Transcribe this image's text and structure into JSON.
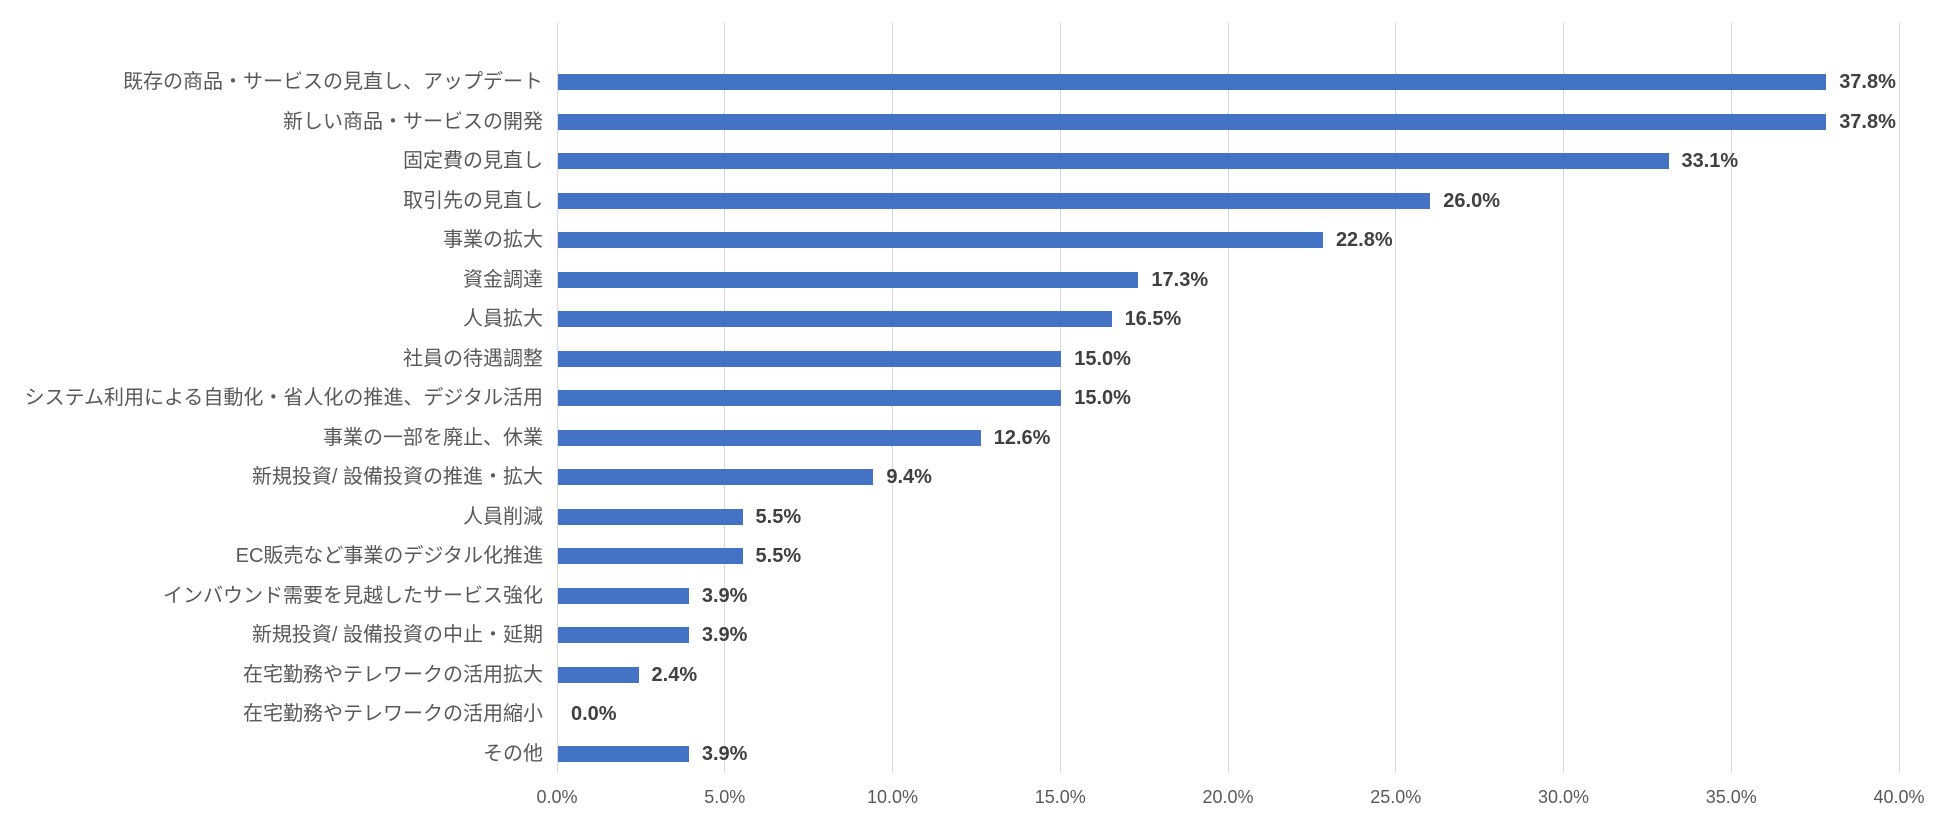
{
  "chart_data": {
    "type": "bar",
    "orientation": "horizontal",
    "title": "",
    "xlabel": "",
    "ylabel": "",
    "categories": [
      "既存の商品・サービスの見直し、アップデート",
      "新しい商品・サービスの開発",
      "固定費の見直し",
      "取引先の見直し",
      "事業の拡大",
      "資金調達",
      "人員拡大",
      "社員の待遇調整",
      "システム利用による自動化・省人化の推進、デジタル活用",
      "事業の一部を廃止、休業",
      "新規投資/ 設備投資の推進・拡大",
      "人員削減",
      "EC販売など事業のデジタル化推進",
      "インバウンド需要を見越したサービス強化",
      "新規投資/ 設備投資の中止・延期",
      "在宅勤務やテレワークの活用拡大",
      "在宅勤務やテレワークの活用縮小",
      "その他"
    ],
    "values": [
      37.8,
      37.8,
      33.1,
      26.0,
      22.8,
      17.3,
      16.5,
      15.0,
      15.0,
      12.6,
      9.4,
      5.5,
      5.5,
      3.9,
      3.9,
      2.4,
      0.0,
      3.9
    ],
    "value_labels": [
      "37.8%",
      "37.8%",
      "33.1%",
      "26.0%",
      "22.8%",
      "17.3%",
      "16.5%",
      "15.0%",
      "15.0%",
      "12.6%",
      "9.4%",
      "5.5%",
      "5.5%",
      "3.9%",
      "3.9%",
      "2.4%",
      "0.0%",
      "3.9%"
    ],
    "xlim": [
      0,
      40
    ],
    "x_ticks": [
      "0.0%",
      "5.0%",
      "10.0%",
      "15.0%",
      "20.0%",
      "25.0%",
      "30.0%",
      "35.0%",
      "40.0%"
    ],
    "grid": "vertical",
    "legend": "none",
    "colors": {
      "bar": "#4472C4",
      "gridline": "#D9D9D9",
      "category_text": "#595959",
      "tick_text": "#595959",
      "value_text": "#404040",
      "background": "#FFFFFF"
    }
  }
}
